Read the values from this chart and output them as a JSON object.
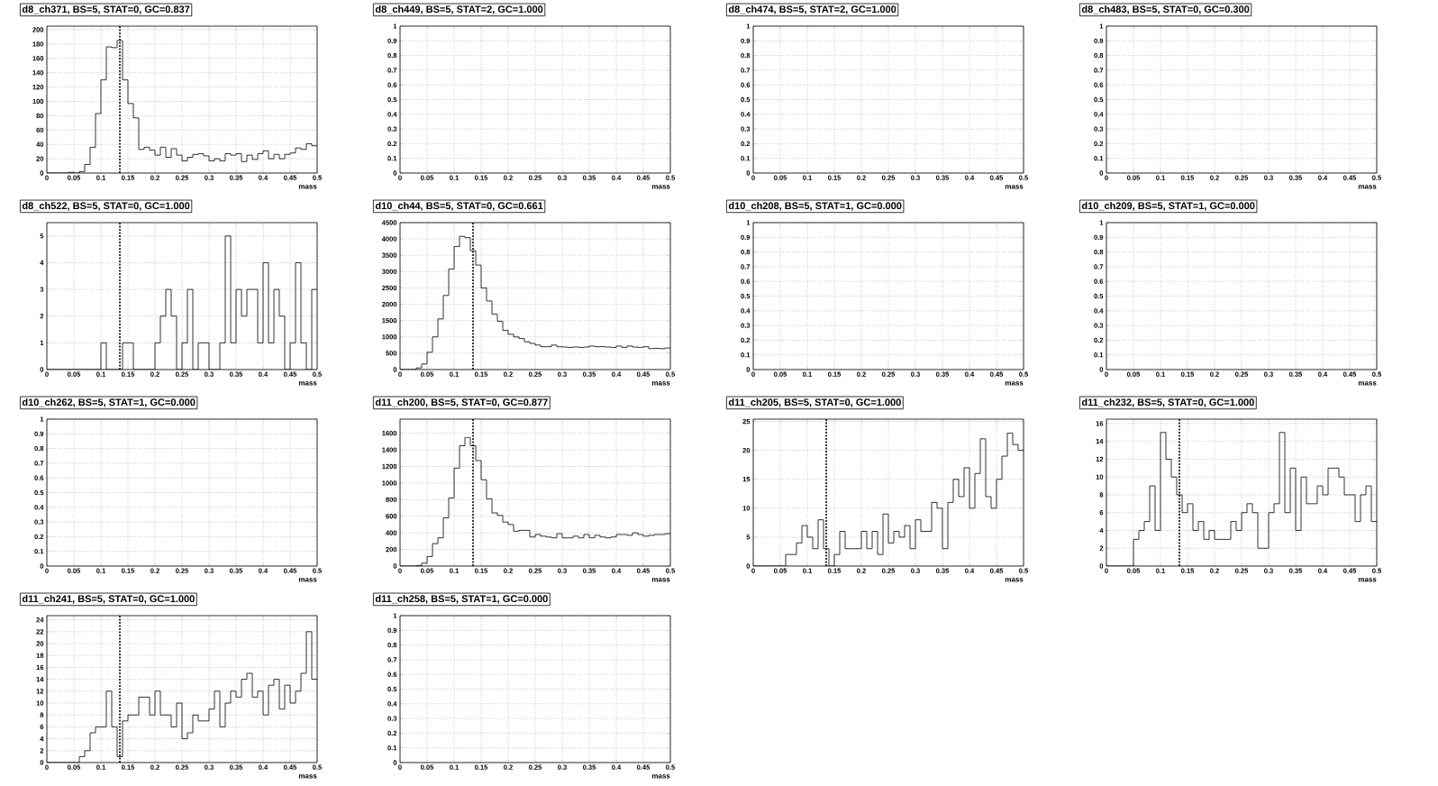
{
  "chart_data": [
    {
      "type": "histogram",
      "title": "d8_ch371, BS=5, STAT=0, GC=0.837",
      "xlabel": "mass",
      "color": "#000000",
      "grid": true,
      "xlim": [
        0,
        0.5
      ],
      "ylim": [
        0,
        205
      ],
      "xticks": [
        0,
        0.05,
        0.1,
        0.15,
        0.2,
        0.25,
        0.3,
        0.35,
        0.4,
        0.45,
        0.5
      ],
      "yticks": [
        0,
        20,
        40,
        60,
        80,
        100,
        120,
        140,
        160,
        180,
        200
      ],
      "ref_lines": [
        {
          "axis": "x",
          "value": 0.135,
          "line_style": "dashed"
        }
      ],
      "bins": [
        0,
        0.01,
        0.02,
        0.03,
        0.04,
        0.05,
        0.06,
        0.07,
        0.08,
        0.09,
        0.1,
        0.11,
        0.12,
        0.13,
        0.14,
        0.15,
        0.16,
        0.17,
        0.18,
        0.19,
        0.2,
        0.21,
        0.22,
        0.23,
        0.24,
        0.25,
        0.26,
        0.27,
        0.28,
        0.29,
        0.3,
        0.31,
        0.32,
        0.33,
        0.34,
        0.35,
        0.36,
        0.37,
        0.38,
        0.39,
        0.4,
        0.41,
        0.42,
        0.43,
        0.44,
        0.45,
        0.46,
        0.47,
        0.48,
        0.49,
        0.5
      ],
      "values": [
        0,
        0,
        0,
        0,
        1,
        0,
        2,
        12,
        36,
        83,
        130,
        176,
        175,
        185,
        130,
        97,
        77,
        33,
        36,
        32,
        25,
        36,
        22,
        34,
        25,
        17,
        22,
        26,
        27,
        24,
        17,
        20,
        17,
        27,
        25,
        27,
        16,
        25,
        19,
        27,
        31,
        20,
        26,
        20,
        26,
        28,
        35,
        33,
        41,
        38
      ]
    },
    {
      "type": "histogram",
      "title": "d8_ch449, BS=5, STAT=2, GC=1.000",
      "xlabel": "mass",
      "grid": true,
      "xlim": [
        0,
        0.5
      ],
      "ylim": [
        0,
        1
      ],
      "xticks": [
        0,
        0.05,
        0.1,
        0.15,
        0.2,
        0.25,
        0.3,
        0.35,
        0.4,
        0.45,
        0.5
      ],
      "yticks": [
        0,
        0.1,
        0.2,
        0.3,
        0.4,
        0.5,
        0.6,
        0.7,
        0.8,
        0.9,
        1
      ]
    },
    {
      "type": "histogram",
      "title": "d8_ch474, BS=5, STAT=2, GC=1.000",
      "xlabel": "mass",
      "grid": true,
      "xlim": [
        0,
        0.5
      ],
      "ylim": [
        0,
        1
      ],
      "xticks": [
        0,
        0.05,
        0.1,
        0.15,
        0.2,
        0.25,
        0.3,
        0.35,
        0.4,
        0.45,
        0.5
      ],
      "yticks": [
        0,
        0.1,
        0.2,
        0.3,
        0.4,
        0.5,
        0.6,
        0.7,
        0.8,
        0.9,
        1
      ]
    },
    {
      "type": "histogram",
      "title": "d8_ch483, BS=5, STAT=0, GC=0.300",
      "xlabel": "mass",
      "grid": true,
      "xlim": [
        0,
        0.5
      ],
      "ylim": [
        0,
        1
      ],
      "xticks": [
        0,
        0.05,
        0.1,
        0.15,
        0.2,
        0.25,
        0.3,
        0.35,
        0.4,
        0.45,
        0.5
      ],
      "yticks": [
        0,
        0.1,
        0.2,
        0.3,
        0.4,
        0.5,
        0.6,
        0.7,
        0.8,
        0.9,
        1
      ]
    },
    {
      "type": "histogram",
      "title": "d8_ch522, BS=5, STAT=0, GC=1.000",
      "xlabel": "mass",
      "color": "#000000",
      "grid": true,
      "xlim": [
        0,
        0.5
      ],
      "ylim": [
        0,
        5.5
      ],
      "xticks": [
        0,
        0.05,
        0.1,
        0.15,
        0.2,
        0.25,
        0.3,
        0.35,
        0.4,
        0.45,
        0.5
      ],
      "yticks": [
        0,
        1,
        2,
        3,
        4,
        5
      ],
      "ref_lines": [
        {
          "axis": "x",
          "value": 0.135,
          "line_style": "dashed"
        }
      ],
      "bins": [
        0,
        0.01,
        0.02,
        0.03,
        0.04,
        0.05,
        0.06,
        0.07,
        0.08,
        0.09,
        0.1,
        0.11,
        0.12,
        0.13,
        0.14,
        0.15,
        0.16,
        0.17,
        0.18,
        0.19,
        0.2,
        0.21,
        0.22,
        0.23,
        0.24,
        0.25,
        0.26,
        0.27,
        0.28,
        0.29,
        0.3,
        0.31,
        0.32,
        0.33,
        0.34,
        0.35,
        0.36,
        0.37,
        0.38,
        0.39,
        0.4,
        0.41,
        0.42,
        0.43,
        0.44,
        0.45,
        0.46,
        0.47,
        0.48,
        0.49,
        0.5
      ],
      "values": [
        0,
        0,
        0,
        0,
        0,
        0,
        0,
        0,
        0,
        0,
        1,
        0,
        0,
        0,
        1,
        1,
        0,
        0,
        0,
        0,
        1,
        2,
        3,
        2,
        0,
        1,
        3,
        0,
        1,
        1,
        0,
        0,
        1,
        5,
        1,
        3,
        2,
        3,
        3,
        1,
        4,
        1,
        3,
        2,
        0,
        1,
        4,
        1,
        0,
        3
      ]
    },
    {
      "type": "histogram",
      "title": "d10_ch44, BS=5, STAT=0, GC=0.661",
      "xlabel": "mass",
      "color": "#000000",
      "grid": true,
      "xlim": [
        0,
        0.5
      ],
      "ylim": [
        0,
        4500
      ],
      "xticks": [
        0,
        0.05,
        0.1,
        0.15,
        0.2,
        0.25,
        0.3,
        0.35,
        0.4,
        0.45,
        0.5
      ],
      "yticks": [
        0,
        500,
        1000,
        1500,
        2000,
        2500,
        3000,
        3500,
        4000,
        4500
      ],
      "ref_lines": [
        {
          "axis": "x",
          "value": 0.135,
          "line_style": "dashed"
        }
      ],
      "bins": [
        0,
        0.01,
        0.02,
        0.03,
        0.04,
        0.05,
        0.06,
        0.07,
        0.08,
        0.09,
        0.1,
        0.11,
        0.12,
        0.13,
        0.14,
        0.15,
        0.16,
        0.17,
        0.18,
        0.19,
        0.2,
        0.21,
        0.22,
        0.23,
        0.24,
        0.25,
        0.26,
        0.27,
        0.28,
        0.29,
        0.3,
        0.31,
        0.32,
        0.33,
        0.34,
        0.35,
        0.36,
        0.37,
        0.38,
        0.39,
        0.4,
        0.41,
        0.42,
        0.43,
        0.44,
        0.45,
        0.46,
        0.47,
        0.48,
        0.49,
        0.5
      ],
      "values": [
        0,
        0,
        0,
        50,
        170,
        530,
        1000,
        1550,
        2270,
        3080,
        3770,
        4080,
        4040,
        3640,
        3200,
        2500,
        2100,
        1700,
        1480,
        1200,
        1080,
        1000,
        950,
        850,
        800,
        750,
        700,
        700,
        750,
        700,
        690,
        680,
        690,
        680,
        690,
        720,
        700,
        700,
        690,
        680,
        720,
        680,
        720,
        690,
        680,
        700,
        640,
        650,
        640,
        660
      ]
    },
    {
      "type": "histogram",
      "title": "d10_ch208, BS=5, STAT=1, GC=0.000",
      "xlabel": "mass",
      "grid": true,
      "xlim": [
        0,
        0.5
      ],
      "ylim": [
        0,
        1
      ],
      "xticks": [
        0,
        0.05,
        0.1,
        0.15,
        0.2,
        0.25,
        0.3,
        0.35,
        0.4,
        0.45,
        0.5
      ],
      "yticks": [
        0,
        0.1,
        0.2,
        0.3,
        0.4,
        0.5,
        0.6,
        0.7,
        0.8,
        0.9,
        1
      ]
    },
    {
      "type": "histogram",
      "title": "d10_ch209, BS=5, STAT=1, GC=0.000",
      "xlabel": "mass",
      "grid": true,
      "xlim": [
        0,
        0.5
      ],
      "ylim": [
        0,
        1
      ],
      "xticks": [
        0,
        0.05,
        0.1,
        0.15,
        0.2,
        0.25,
        0.3,
        0.35,
        0.4,
        0.45,
        0.5
      ],
      "yticks": [
        0,
        0.1,
        0.2,
        0.3,
        0.4,
        0.5,
        0.6,
        0.7,
        0.8,
        0.9,
        1
      ]
    },
    {
      "type": "histogram",
      "title": "d10_ch262, BS=5, STAT=1, GC=0.000",
      "xlabel": "mass",
      "grid": true,
      "xlim": [
        0,
        0.5
      ],
      "ylim": [
        0,
        1
      ],
      "xticks": [
        0,
        0.05,
        0.1,
        0.15,
        0.2,
        0.25,
        0.3,
        0.35,
        0.4,
        0.45,
        0.5
      ],
      "yticks": [
        0,
        0.1,
        0.2,
        0.3,
        0.4,
        0.5,
        0.6,
        0.7,
        0.8,
        0.9,
        1
      ]
    },
    {
      "type": "histogram",
      "title": "d11_ch200, BS=5, STAT=0, GC=0.877",
      "xlabel": "mass",
      "color": "#000000",
      "grid": true,
      "xlim": [
        0,
        0.5
      ],
      "ylim": [
        0,
        1770
      ],
      "xticks": [
        0,
        0.05,
        0.1,
        0.15,
        0.2,
        0.25,
        0.3,
        0.35,
        0.4,
        0.45,
        0.5
      ],
      "yticks": [
        0,
        200,
        400,
        600,
        800,
        1000,
        1200,
        1400,
        1600
      ],
      "ref_lines": [
        {
          "axis": "x",
          "value": 0.135,
          "line_style": "dashed"
        }
      ],
      "bins": [
        0,
        0.01,
        0.02,
        0.03,
        0.04,
        0.05,
        0.06,
        0.07,
        0.08,
        0.09,
        0.1,
        0.11,
        0.12,
        0.13,
        0.14,
        0.15,
        0.16,
        0.17,
        0.18,
        0.19,
        0.2,
        0.21,
        0.22,
        0.23,
        0.24,
        0.25,
        0.26,
        0.27,
        0.28,
        0.29,
        0.3,
        0.31,
        0.32,
        0.33,
        0.34,
        0.35,
        0.36,
        0.37,
        0.38,
        0.39,
        0.4,
        0.41,
        0.42,
        0.43,
        0.44,
        0.45,
        0.46,
        0.47,
        0.48,
        0.49,
        0.5
      ],
      "values": [
        0,
        0,
        0,
        5,
        35,
        115,
        270,
        340,
        580,
        820,
        1180,
        1450,
        1550,
        1450,
        1270,
        1040,
        810,
        640,
        610,
        530,
        500,
        420,
        430,
        430,
        350,
        380,
        360,
        350,
        340,
        390,
        340,
        340,
        360,
        340,
        380,
        340,
        370,
        350,
        340,
        350,
        380,
        380,
        370,
        400,
        380,
        360,
        370,
        380,
        380,
        390
      ]
    },
    {
      "type": "histogram",
      "title": "d11_ch205, BS=5, STAT=0, GC=1.000",
      "xlabel": "mass",
      "color": "#000000",
      "grid": true,
      "xlim": [
        0,
        0.5
      ],
      "ylim": [
        0,
        25.4
      ],
      "xticks": [
        0,
        0.05,
        0.1,
        0.15,
        0.2,
        0.25,
        0.3,
        0.35,
        0.4,
        0.45,
        0.5
      ],
      "yticks": [
        0,
        5,
        10,
        15,
        20,
        25
      ],
      "ref_lines": [
        {
          "axis": "x",
          "value": 0.135,
          "line_style": "dashed"
        }
      ],
      "bins": [
        0,
        0.01,
        0.02,
        0.03,
        0.04,
        0.05,
        0.06,
        0.07,
        0.08,
        0.09,
        0.1,
        0.11,
        0.12,
        0.13,
        0.14,
        0.15,
        0.16,
        0.17,
        0.18,
        0.19,
        0.2,
        0.21,
        0.22,
        0.23,
        0.24,
        0.25,
        0.26,
        0.27,
        0.28,
        0.29,
        0.3,
        0.31,
        0.32,
        0.33,
        0.34,
        0.35,
        0.36,
        0.37,
        0.38,
        0.39,
        0.4,
        0.41,
        0.42,
        0.43,
        0.44,
        0.45,
        0.46,
        0.47,
        0.48,
        0.49,
        0.5
      ],
      "values": [
        0,
        0,
        0,
        0,
        0,
        0,
        2,
        2,
        4,
        7,
        5,
        3,
        8,
        3,
        0,
        2,
        6,
        3,
        3,
        3,
        6,
        3,
        6,
        2,
        9,
        4,
        6,
        5,
        7,
        3,
        8,
        6,
        6,
        11,
        10,
        3,
        11,
        15,
        12,
        17,
        10,
        16,
        22,
        12,
        10,
        15,
        19,
        23,
        21,
        20
      ]
    },
    {
      "type": "histogram",
      "title": "d11_ch232, BS=5, STAT=0, GC=1.000",
      "xlabel": "mass",
      "color": "#000000",
      "grid": true,
      "xlim": [
        0,
        0.5
      ],
      "ylim": [
        0,
        16.5
      ],
      "xticks": [
        0,
        0.05,
        0.1,
        0.15,
        0.2,
        0.25,
        0.3,
        0.35,
        0.4,
        0.45,
        0.5
      ],
      "yticks": [
        0,
        2,
        4,
        6,
        8,
        10,
        12,
        14,
        16
      ],
      "ref_lines": [
        {
          "axis": "x",
          "value": 0.135,
          "line_style": "dashed"
        }
      ],
      "bins": [
        0,
        0.01,
        0.02,
        0.03,
        0.04,
        0.05,
        0.06,
        0.07,
        0.08,
        0.09,
        0.1,
        0.11,
        0.12,
        0.13,
        0.14,
        0.15,
        0.16,
        0.17,
        0.18,
        0.19,
        0.2,
        0.21,
        0.22,
        0.23,
        0.24,
        0.25,
        0.26,
        0.27,
        0.28,
        0.29,
        0.3,
        0.31,
        0.32,
        0.33,
        0.34,
        0.35,
        0.36,
        0.37,
        0.38,
        0.39,
        0.4,
        0.41,
        0.42,
        0.43,
        0.44,
        0.45,
        0.46,
        0.47,
        0.48,
        0.49,
        0.5
      ],
      "values": [
        0,
        0,
        0,
        0,
        0,
        3,
        4,
        5,
        9,
        4,
        15,
        12,
        10,
        8,
        6,
        7,
        4,
        5,
        3,
        4,
        3,
        3,
        3,
        5,
        4,
        6,
        7,
        6,
        2,
        2,
        6,
        7,
        15,
        6,
        11,
        4,
        10,
        7,
        7,
        9,
        8,
        11,
        11,
        10,
        8,
        8,
        5,
        8,
        9,
        5
      ]
    },
    {
      "type": "histogram",
      "title": "d11_ch241, BS=5, STAT=0, GC=1.000",
      "xlabel": "mass",
      "color": "#000000",
      "grid": true,
      "xlim": [
        0,
        0.5
      ],
      "ylim": [
        0,
        24.7
      ],
      "xticks": [
        0,
        0.05,
        0.1,
        0.15,
        0.2,
        0.25,
        0.3,
        0.35,
        0.4,
        0.45,
        0.5
      ],
      "yticks": [
        0,
        2,
        4,
        6,
        8,
        10,
        12,
        14,
        16,
        18,
        20,
        22,
        24
      ],
      "ref_lines": [
        {
          "axis": "x",
          "value": 0.135,
          "line_style": "dashed"
        }
      ],
      "bins": [
        0,
        0.01,
        0.02,
        0.03,
        0.04,
        0.05,
        0.06,
        0.07,
        0.08,
        0.09,
        0.1,
        0.11,
        0.12,
        0.13,
        0.14,
        0.15,
        0.16,
        0.17,
        0.18,
        0.19,
        0.2,
        0.21,
        0.22,
        0.23,
        0.24,
        0.25,
        0.26,
        0.27,
        0.28,
        0.29,
        0.3,
        0.31,
        0.32,
        0.33,
        0.34,
        0.35,
        0.36,
        0.37,
        0.38,
        0.39,
        0.4,
        0.41,
        0.42,
        0.43,
        0.44,
        0.45,
        0.46,
        0.47,
        0.48,
        0.49,
        0.5
      ],
      "values": [
        0,
        0,
        0,
        0,
        0,
        0,
        1,
        2,
        5,
        6,
        6,
        12,
        6,
        1,
        7,
        8,
        8,
        11,
        11,
        8,
        12,
        8,
        8,
        6,
        10,
        4,
        5,
        8,
        7,
        7,
        9,
        12,
        6,
        10,
        12,
        11,
        14,
        15,
        11,
        12,
        8,
        13,
        14,
        9,
        13,
        10,
        12,
        15,
        22,
        14
      ]
    },
    {
      "type": "histogram",
      "title": "d11_ch258, BS=5, STAT=1, GC=0.000",
      "xlabel": "mass",
      "grid": true,
      "xlim": [
        0,
        0.5
      ],
      "ylim": [
        0,
        1
      ],
      "xticks": [
        0,
        0.05,
        0.1,
        0.15,
        0.2,
        0.25,
        0.3,
        0.35,
        0.4,
        0.45,
        0.5
      ],
      "yticks": [
        0,
        0.1,
        0.2,
        0.3,
        0.4,
        0.5,
        0.6,
        0.7,
        0.8,
        0.9,
        1
      ]
    }
  ]
}
